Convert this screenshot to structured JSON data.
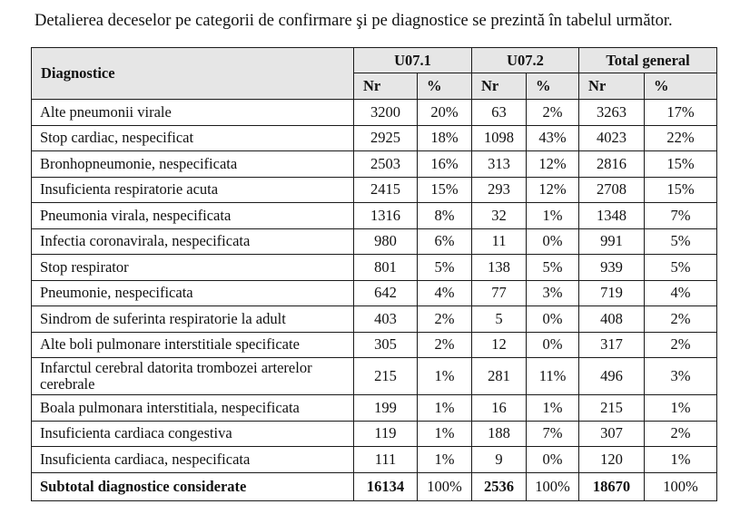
{
  "intro_text": "Detalierea deceselor pe categorii de confirmare şi pe diagnostice se prezintă în tabelul următor.",
  "table": {
    "header": {
      "diagnostic": "Diagnostice",
      "groups": [
        "U07.1",
        "U07.2",
        "Total general"
      ],
      "sub": [
        "Nr",
        "%",
        "Nr",
        "%",
        "Nr",
        "%"
      ]
    },
    "rows": [
      {
        "name": "Alte pneumonii virale",
        "cells": [
          "3200",
          "20%",
          "63",
          "2%",
          "3263",
          "17%"
        ]
      },
      {
        "name": "Stop cardiac, nespecificat",
        "cells": [
          "2925",
          "18%",
          "1098",
          "43%",
          "4023",
          "22%"
        ]
      },
      {
        "name": "Bronhopneumonie, nespecificata",
        "cells": [
          "2503",
          "16%",
          "313",
          "12%",
          "2816",
          "15%"
        ]
      },
      {
        "name": "Insuficienta respiratorie acuta",
        "cells": [
          "2415",
          "15%",
          "293",
          "12%",
          "2708",
          "15%"
        ]
      },
      {
        "name": "Pneumonia virala, nespecificata",
        "cells": [
          "1316",
          "8%",
          "32",
          "1%",
          "1348",
          "7%"
        ]
      },
      {
        "name": "Infectia coronavirala, nespecificata",
        "cells": [
          "980",
          "6%",
          "11",
          "0%",
          "991",
          "5%"
        ]
      },
      {
        "name": "Stop respirator",
        "cells": [
          "801",
          "5%",
          "138",
          "5%",
          "939",
          "5%"
        ]
      },
      {
        "name": "Pneumonie, nespecificata",
        "cells": [
          "642",
          "4%",
          "77",
          "3%",
          "719",
          "4%"
        ]
      },
      {
        "name": "Sindrom de suferinta respiratorie la adult",
        "cells": [
          "403",
          "2%",
          "5",
          "0%",
          "408",
          "2%"
        ]
      },
      {
        "name": "Alte boli pulmonare interstitiale specificate",
        "cells": [
          "305",
          "2%",
          "12",
          "0%",
          "317",
          "2%"
        ]
      },
      {
        "name": "Infarctul cerebral datorita trombozei arterelor cerebrale",
        "cells": [
          "215",
          "1%",
          "281",
          "11%",
          "496",
          "3%"
        ]
      },
      {
        "name": "Boala pulmonara interstitiala, nespecificata",
        "cells": [
          "199",
          "1%",
          "16",
          "1%",
          "215",
          "1%"
        ]
      },
      {
        "name": "Insuficienta cardiaca congestiva",
        "cells": [
          "119",
          "1%",
          "188",
          "7%",
          "307",
          "2%"
        ]
      },
      {
        "name": "Insuficienta cardiaca, nespecificata",
        "cells": [
          "111",
          "1%",
          "9",
          "0%",
          "120",
          "1%"
        ]
      }
    ],
    "subtotal": {
      "name": "Subtotal diagnostice considerate",
      "cells": [
        "16134",
        "100%",
        "2536",
        "100%",
        "18670",
        "100%"
      ]
    }
  }
}
